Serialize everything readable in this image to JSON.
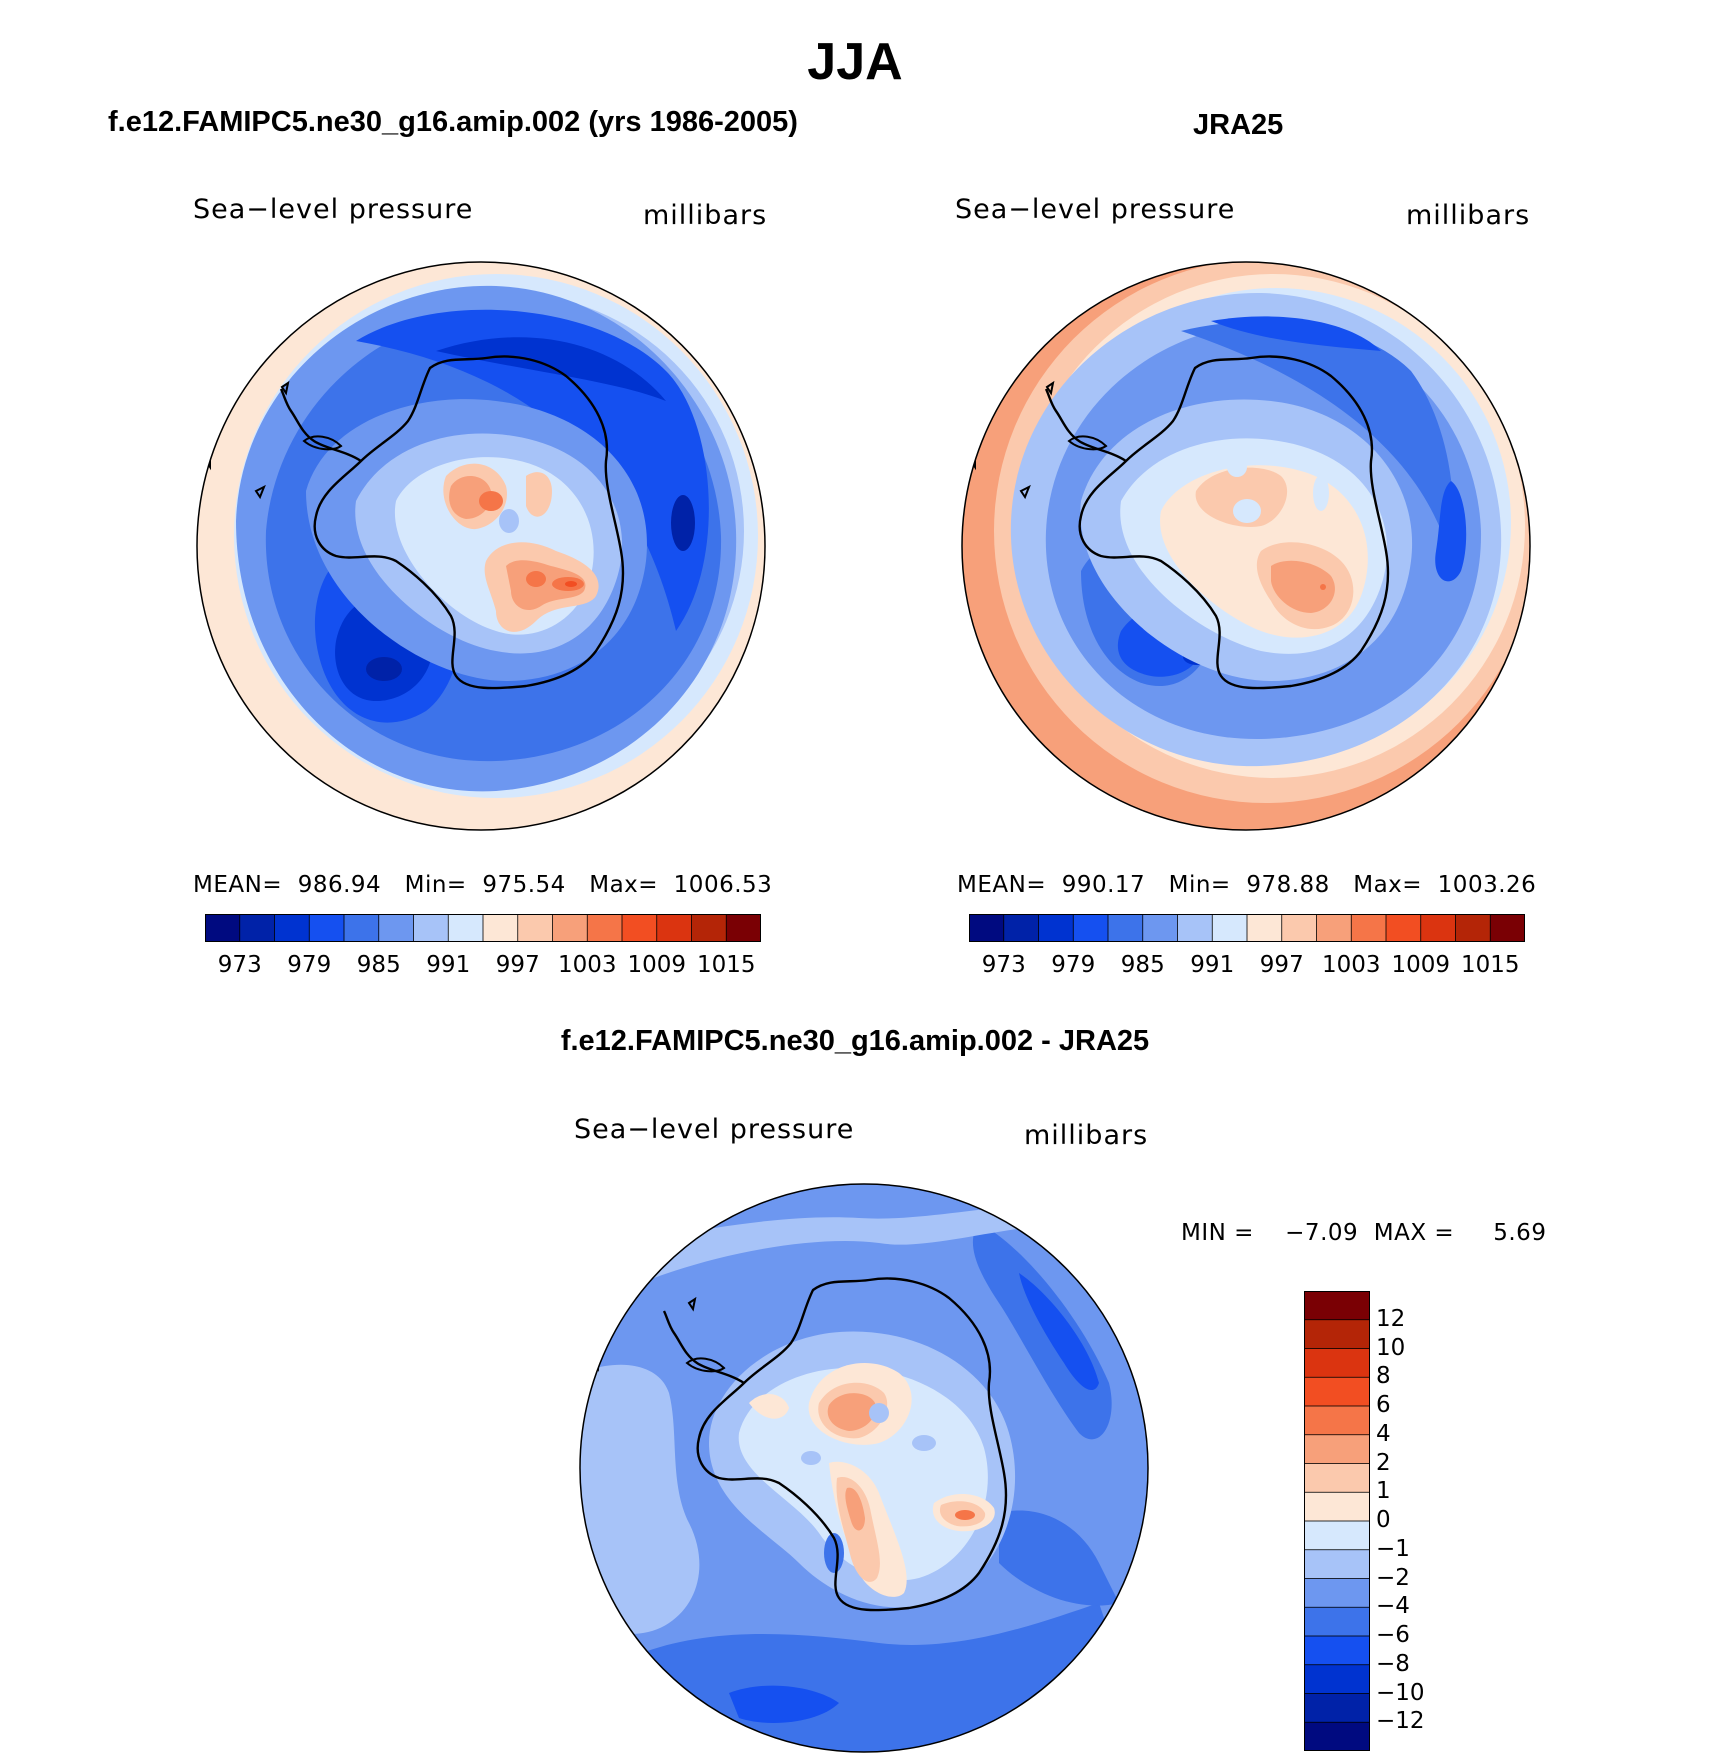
{
  "figure": {
    "title": "JJA"
  },
  "colors": {
    "sequential": [
      "#000a80",
      "#0022a8",
      "#0033d0",
      "#1550f0",
      "#3d73ea",
      "#6d97f0",
      "#a7c3f8",
      "#d6e8fd",
      "#fde7d6",
      "#fbc9ad",
      "#f7a07a",
      "#f57548",
      "#f24e22",
      "#db3410",
      "#b42507",
      "#7a0004"
    ],
    "difference": [
      "#000a80",
      "#0022a8",
      "#0033d0",
      "#1550f0",
      "#3d73ea",
      "#6d97f0",
      "#a7c3f8",
      "#d6e8fd",
      "#fde7d6",
      "#fbc9ad",
      "#f7a07a",
      "#f57548",
      "#f24e22",
      "#db3410",
      "#b42507",
      "#7a0004"
    ],
    "coastline": "#000000"
  },
  "panels": [
    {
      "title": "f.e12.FAMIPC5.ne30_g16.amip.002 (yrs 1986-2005)",
      "variable": "Sea−level pressure",
      "units": "millibars",
      "stats": "MEAN=  986.94   Min=  975.54   Max=  1006.53",
      "colorbar_ticks": [
        "973",
        "979",
        "985",
        "991",
        "997",
        "1003",
        "1009",
        "1015"
      ]
    },
    {
      "title": "JRA25",
      "variable": "Sea−level pressure",
      "units": "millibars",
      "stats": "MEAN=  990.17   Min=  978.88   Max=  1003.26",
      "colorbar_ticks": [
        "973",
        "979",
        "985",
        "991",
        "997",
        "1003",
        "1009",
        "1015"
      ]
    },
    {
      "title": "f.e12.FAMIPC5.ne30_g16.amip.002 - JRA25",
      "variable": "Sea−level pressure",
      "units": "millibars",
      "stats": "MIN =    −7.09  MAX =     5.69",
      "colorbar_ticks": [
        "12",
        "10",
        "8",
        "6",
        "4",
        "2",
        "1",
        "0",
        "−1",
        "−2",
        "−4",
        "−6",
        "−8",
        "−10",
        "−12"
      ]
    }
  ]
}
